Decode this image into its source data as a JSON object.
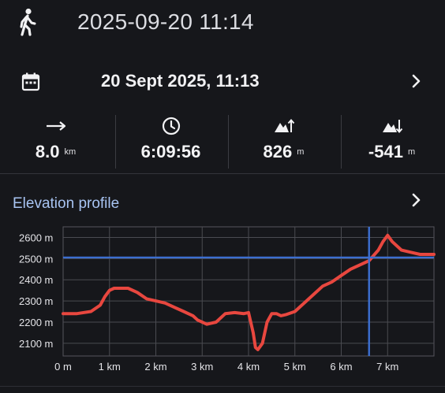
{
  "header": {
    "title": "2025-09-20 11:14",
    "icon": "walking-person-icon"
  },
  "date_row": {
    "label": "20 Sept 2025, 11:13",
    "icon": "calendar-icon",
    "chevron": "chevron-right-icon"
  },
  "stats": [
    {
      "icon": "distance-arrow-icon",
      "value": "8.0",
      "unit": "km"
    },
    {
      "icon": "clock-icon",
      "value": "6:09:56",
      "unit": ""
    },
    {
      "icon": "ascent-icon",
      "value": "826",
      "unit": "m"
    },
    {
      "icon": "descent-icon",
      "value": "-541",
      "unit": "m"
    }
  ],
  "elevation": {
    "title": "Elevation profile",
    "chevron": "chevron-right-icon"
  },
  "chart_data": {
    "type": "line",
    "series_color": "#e8473f",
    "cursor_color": "#3c6fd1",
    "xlim": [
      0,
      8.0
    ],
    "ylim": [
      2040,
      2650
    ],
    "x_ticks": [
      0,
      1,
      2,
      3,
      4,
      5,
      6,
      7
    ],
    "x_tick_labels": [
      "0 m",
      "1 km",
      "2 km",
      "3 km",
      "4 km",
      "5 km",
      "6 km",
      "7 km"
    ],
    "y_ticks": [
      2100,
      2200,
      2300,
      2400,
      2500,
      2600
    ],
    "y_tick_labels": [
      "2100 m",
      "2200 m",
      "2300 m",
      "2400 m",
      "2500 m",
      "2600 m"
    ],
    "cursor": {
      "x": 6.6,
      "y": 2505
    },
    "grid": true,
    "x": [
      0,
      0.3,
      0.6,
      0.8,
      0.9,
      1.0,
      1.1,
      1.2,
      1.4,
      1.6,
      1.8,
      2.0,
      2.2,
      2.4,
      2.6,
      2.8,
      2.9,
      3.1,
      3.3,
      3.5,
      3.7,
      3.9,
      4.0,
      4.1,
      4.15,
      4.2,
      4.3,
      4.4,
      4.5,
      4.6,
      4.7,
      4.8,
      5.0,
      5.2,
      5.4,
      5.6,
      5.8,
      6.0,
      6.2,
      6.4,
      6.6,
      6.8,
      6.9,
      7.0,
      7.1,
      7.3,
      7.5,
      7.7,
      7.9,
      8.0
    ],
    "y": [
      2240,
      2240,
      2250,
      2280,
      2320,
      2350,
      2360,
      2360,
      2360,
      2340,
      2310,
      2300,
      2290,
      2270,
      2250,
      2230,
      2210,
      2190,
      2200,
      2240,
      2245,
      2240,
      2245,
      2150,
      2080,
      2070,
      2100,
      2200,
      2240,
      2240,
      2230,
      2235,
      2250,
      2290,
      2330,
      2370,
      2390,
      2420,
      2450,
      2470,
      2490,
      2540,
      2580,
      2610,
      2580,
      2540,
      2530,
      2520,
      2520,
      2520
    ]
  }
}
